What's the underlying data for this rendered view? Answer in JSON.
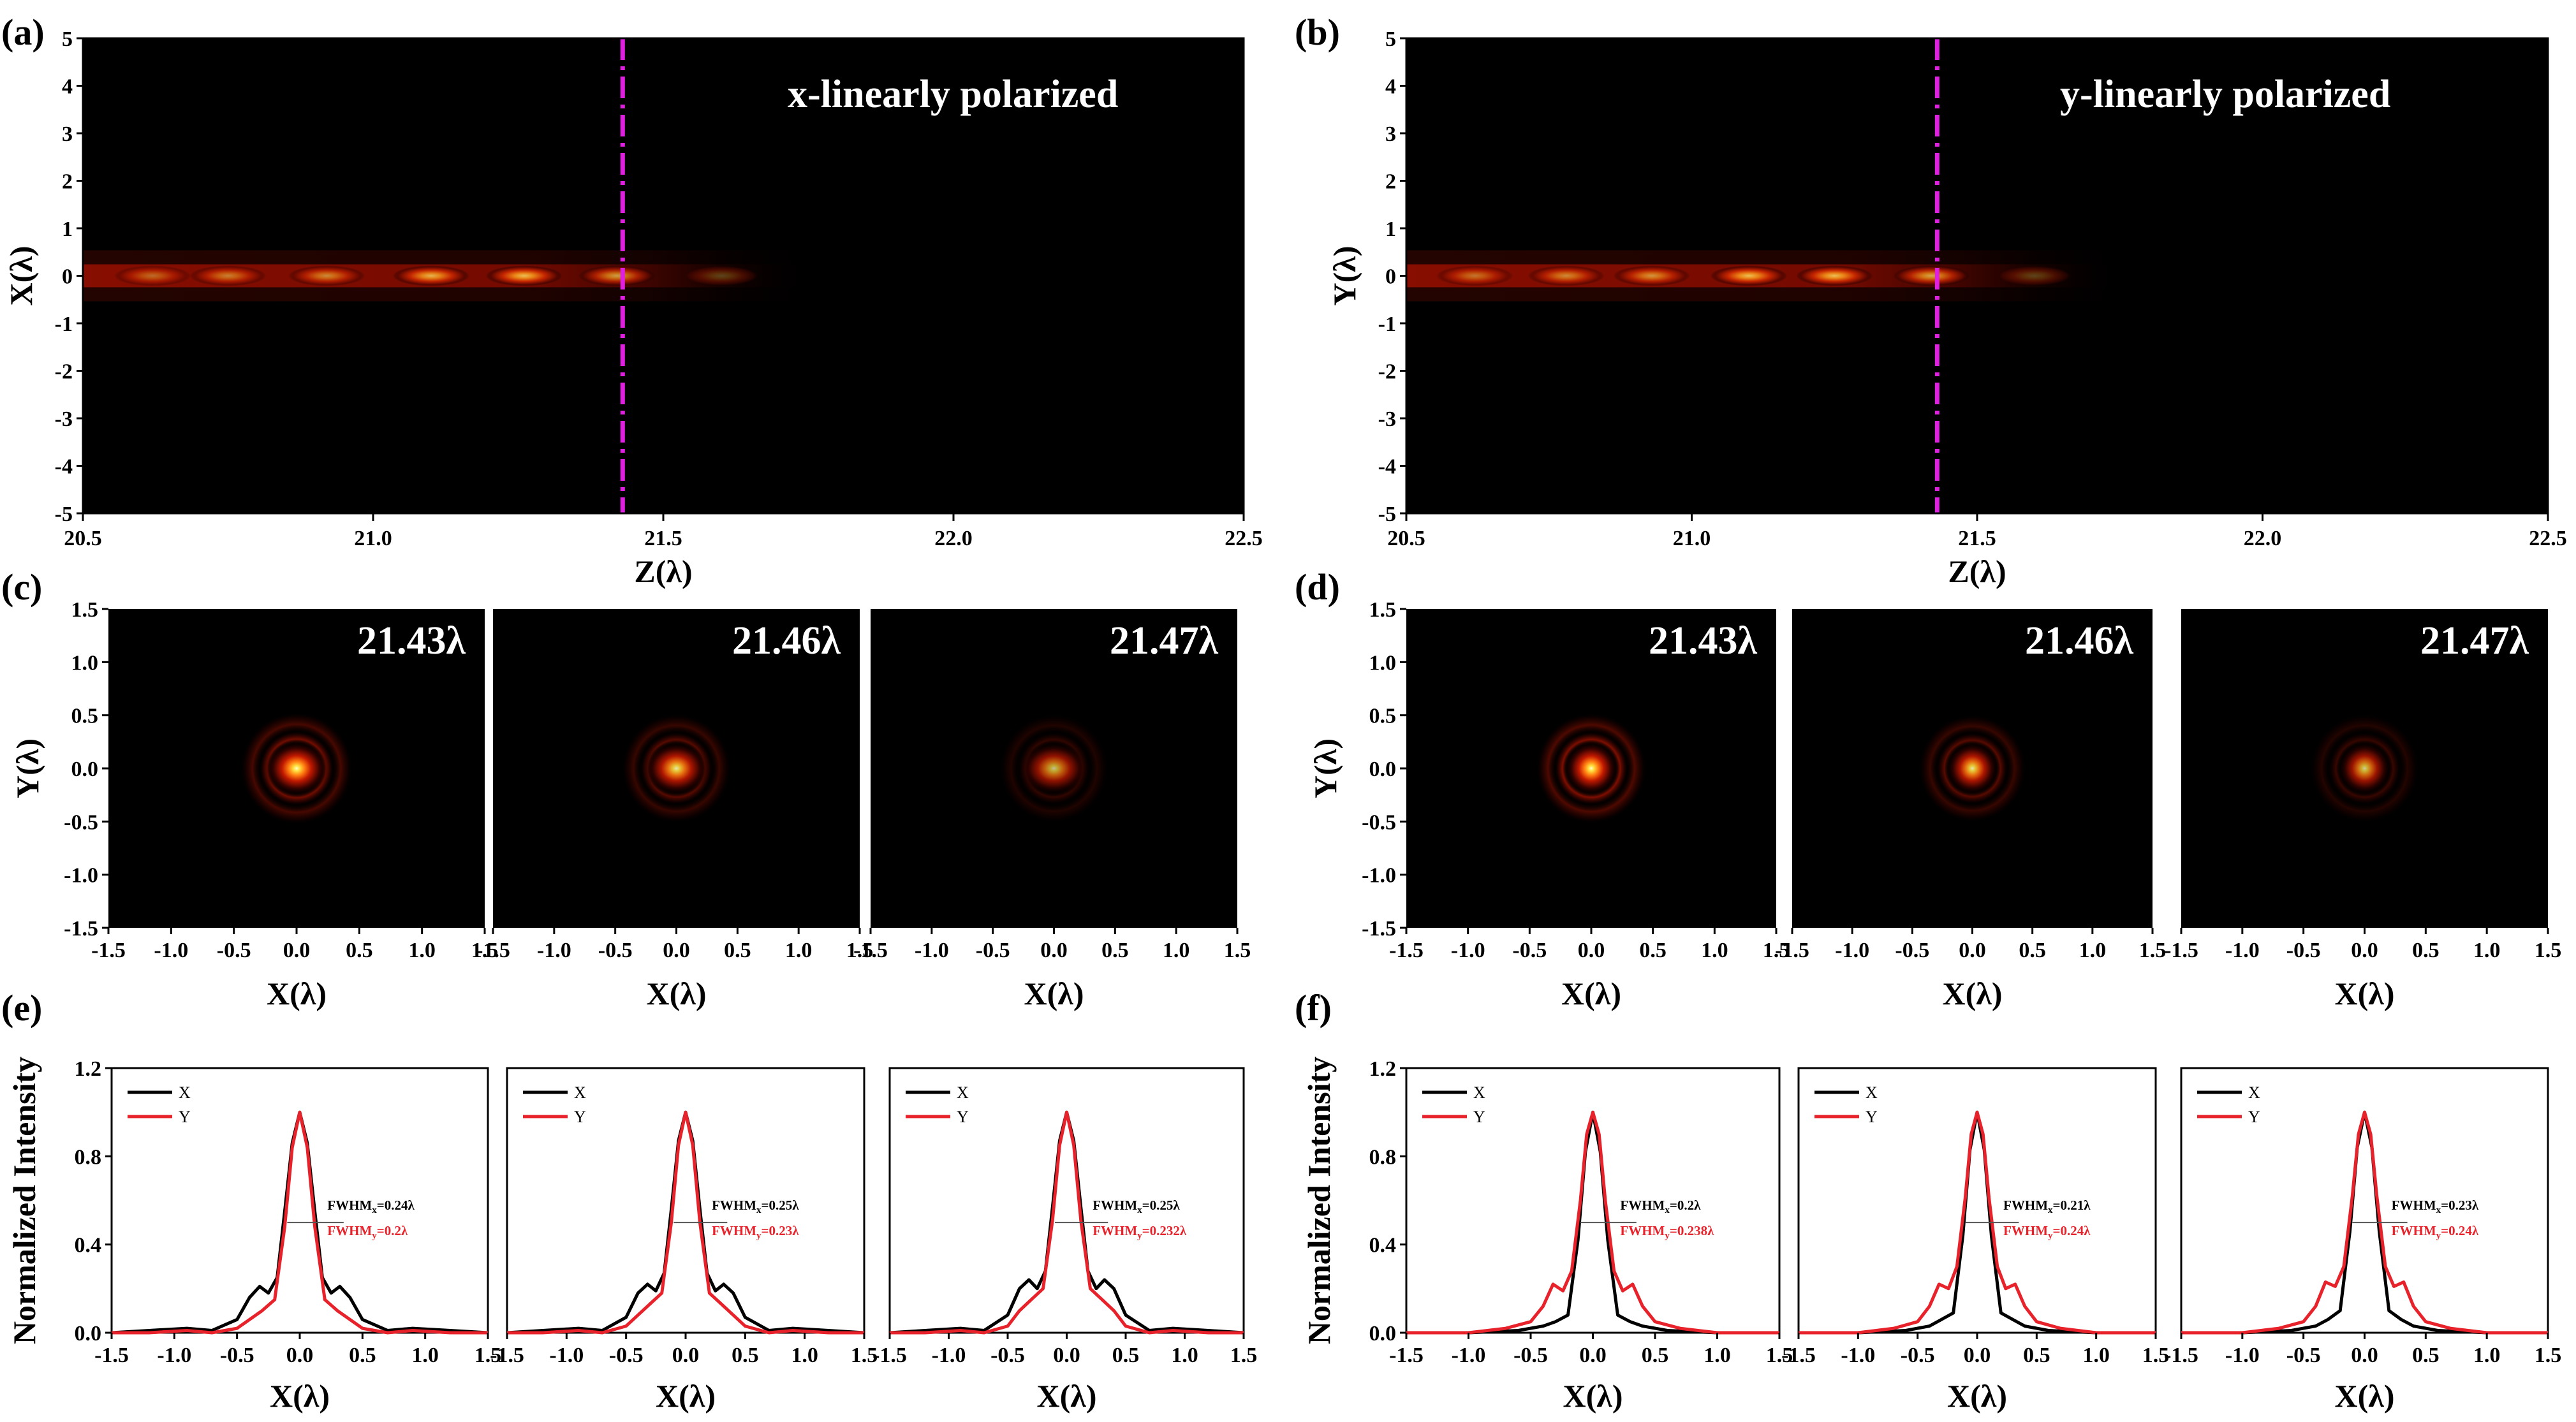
{
  "colors": {
    "x_curve": "#000000",
    "y_curve": "#e8222a",
    "marker": "#e020e0",
    "background": "#000000"
  },
  "chart_data": [
    {
      "id": "a",
      "type": "heatmap",
      "panel_label": "(a)",
      "annotation": "x-linearly polarized",
      "xlabel": "Z(λ)",
      "ylabel": "X(λ)",
      "xlim": [
        20.5,
        22.5
      ],
      "ylim": [
        -5,
        5
      ],
      "xticks": [
        "20.5",
        "21.0",
        "21.5",
        "22.0",
        "22.5"
      ],
      "yticks": [
        "5",
        "4",
        "3",
        "2",
        "1",
        "0",
        "-1",
        "-2",
        "-3",
        "-4",
        "-5"
      ],
      "marker_z": 21.43,
      "hotspots": [
        {
          "z": 20.62,
          "i": 0.45
        },
        {
          "z": 20.75,
          "i": 0.55
        },
        {
          "z": 20.92,
          "i": 0.6
        },
        {
          "z": 21.1,
          "i": 0.8
        },
        {
          "z": 21.26,
          "i": 0.85
        },
        {
          "z": 21.42,
          "i": 0.7
        },
        {
          "z": 21.6,
          "i": 0.3
        }
      ]
    },
    {
      "id": "b",
      "type": "heatmap",
      "panel_label": "(b)",
      "annotation": "y-linearly polarized",
      "xlabel": "Z(λ)",
      "ylabel": "Y(λ)",
      "xlim": [
        20.5,
        22.5
      ],
      "ylim": [
        -5,
        5
      ],
      "xticks": [
        "20.5",
        "21.0",
        "21.5",
        "22.0",
        "22.5"
      ],
      "yticks": [
        "5",
        "4",
        "3",
        "2",
        "1",
        "0",
        "-1",
        "-2",
        "-3",
        "-4",
        "-5"
      ],
      "marker_z": 21.43,
      "hotspots": [
        {
          "z": 20.62,
          "i": 0.5
        },
        {
          "z": 20.78,
          "i": 0.6
        },
        {
          "z": 20.93,
          "i": 0.65
        },
        {
          "z": 21.1,
          "i": 0.85
        },
        {
          "z": 21.25,
          "i": 0.85
        },
        {
          "z": 21.42,
          "i": 0.75
        },
        {
          "z": 21.6,
          "i": 0.3
        }
      ]
    },
    {
      "id": "c",
      "type": "heatmap",
      "panel_label": "(c)",
      "xlabel": "X(λ)",
      "ylabel": "Y(λ)",
      "xlim": [
        -1.5,
        1.5
      ],
      "ylim": [
        -1.5,
        1.5
      ],
      "xticks": [
        "-1.5",
        "-1.0",
        "-0.5",
        "0.0",
        "0.5",
        "1.0",
        "1.5"
      ],
      "yticks": [
        "1.5",
        "1.0",
        "0.5",
        "0.0",
        "-0.5",
        "-1.0",
        "-1.5"
      ],
      "subplots": [
        {
          "label": "21.43λ",
          "peak": 1.0,
          "ring": 0.45,
          "elong": 1.15
        },
        {
          "label": "21.46λ",
          "peak": 0.9,
          "ring": 0.35,
          "elong": 1.2
        },
        {
          "label": "21.47λ",
          "peak": 0.75,
          "ring": 0.2,
          "elong": 1.3
        }
      ]
    },
    {
      "id": "d",
      "type": "heatmap",
      "panel_label": "(d)",
      "xlabel": "X(λ)",
      "ylabel": "Y(λ)",
      "xlim": [
        -1.5,
        1.5
      ],
      "ylim": [
        -1.5,
        1.5
      ],
      "xticks": [
        "-1.5",
        "-1.0",
        "-0.5",
        "0.0",
        "0.5",
        "1.0",
        "1.5"
      ],
      "yticks": [
        "1.5",
        "1.0",
        "0.5",
        "0.0",
        "-0.5",
        "-1.0",
        "-1.5"
      ],
      "subplots": [
        {
          "label": "21.43λ",
          "peak": 1.0,
          "ring": 0.5,
          "elong": 1.0
        },
        {
          "label": "21.46λ",
          "peak": 0.9,
          "ring": 0.35,
          "elong": 1.0
        },
        {
          "label": "21.47λ",
          "peak": 0.8,
          "ring": 0.22,
          "elong": 1.0
        }
      ]
    },
    {
      "id": "e",
      "type": "line",
      "panel_label": "(e)",
      "xlabel": "X(λ)",
      "ylabel": "Normalized Intensity",
      "xlim": [
        -1.5,
        1.5
      ],
      "ylim": [
        0,
        1.2
      ],
      "xticks": [
        "-1.5",
        "-1.0",
        "-0.5",
        "0.0",
        "0.5",
        "1.0",
        "1.5"
      ],
      "yticks": [
        "1.2",
        "0.8",
        "0.4",
        "0.0"
      ],
      "legend": [
        "X",
        "Y"
      ],
      "subplots": [
        {
          "fwhm_x": "FWHMx=0.24λ",
          "fwhm_y": "FWHMy=0.2λ",
          "series": [
            {
              "name": "X",
              "x": [
                -1.5,
                -1.2,
                -0.9,
                -0.7,
                -0.5,
                -0.4,
                -0.32,
                -0.25,
                -0.18,
                -0.12,
                -0.06,
                0.0,
                0.06,
                0.12,
                0.18,
                0.25,
                0.32,
                0.4,
                0.5,
                0.7,
                0.9,
                1.2,
                1.5
              ],
              "values": [
                0.0,
                0.01,
                0.02,
                0.01,
                0.06,
                0.16,
                0.21,
                0.18,
                0.25,
                0.55,
                0.86,
                1.0,
                0.86,
                0.55,
                0.25,
                0.18,
                0.21,
                0.16,
                0.06,
                0.01,
                0.02,
                0.01,
                0.0
              ]
            },
            {
              "name": "Y",
              "x": [
                -1.5,
                -1.2,
                -0.9,
                -0.7,
                -0.5,
                -0.4,
                -0.3,
                -0.2,
                -0.12,
                -0.06,
                0.0,
                0.06,
                0.12,
                0.2,
                0.3,
                0.4,
                0.5,
                0.7,
                0.9,
                1.2,
                1.5
              ],
              "values": [
                0.0,
                0.0,
                0.01,
                0.0,
                0.02,
                0.06,
                0.1,
                0.15,
                0.48,
                0.84,
                1.0,
                0.84,
                0.48,
                0.15,
                0.1,
                0.06,
                0.02,
                0.0,
                0.01,
                0.0,
                0.0
              ]
            }
          ]
        },
        {
          "fwhm_x": "FWHMx=0.25λ",
          "fwhm_y": "FWHMy=0.23λ",
          "series": [
            {
              "name": "X",
              "x": [
                -1.5,
                -1.2,
                -0.9,
                -0.7,
                -0.5,
                -0.4,
                -0.32,
                -0.25,
                -0.18,
                -0.12,
                -0.06,
                0.0,
                0.06,
                0.12,
                0.18,
                0.25,
                0.32,
                0.4,
                0.5,
                0.7,
                0.9,
                1.2,
                1.5
              ],
              "values": [
                0.0,
                0.01,
                0.02,
                0.01,
                0.07,
                0.18,
                0.22,
                0.19,
                0.27,
                0.56,
                0.87,
                1.0,
                0.87,
                0.56,
                0.27,
                0.19,
                0.22,
                0.18,
                0.07,
                0.01,
                0.02,
                0.01,
                0.0
              ]
            },
            {
              "name": "Y",
              "x": [
                -1.5,
                -1.2,
                -0.9,
                -0.7,
                -0.5,
                -0.4,
                -0.3,
                -0.2,
                -0.12,
                -0.06,
                0.0,
                0.06,
                0.12,
                0.2,
                0.3,
                0.4,
                0.5,
                0.7,
                0.9,
                1.2,
                1.5
              ],
              "values": [
                0.0,
                0.0,
                0.01,
                0.0,
                0.03,
                0.08,
                0.13,
                0.18,
                0.5,
                0.85,
                1.0,
                0.85,
                0.5,
                0.18,
                0.13,
                0.08,
                0.03,
                0.0,
                0.01,
                0.0,
                0.0
              ]
            }
          ]
        },
        {
          "fwhm_x": "FWHMx=0.25λ",
          "fwhm_y": "FWHMy=0.232λ",
          "series": [
            {
              "name": "X",
              "x": [
                -1.5,
                -1.2,
                -0.9,
                -0.7,
                -0.5,
                -0.4,
                -0.32,
                -0.25,
                -0.18,
                -0.12,
                -0.06,
                0.0,
                0.06,
                0.12,
                0.18,
                0.25,
                0.32,
                0.4,
                0.5,
                0.7,
                0.9,
                1.2,
                1.5
              ],
              "values": [
                0.0,
                0.01,
                0.02,
                0.01,
                0.08,
                0.2,
                0.24,
                0.2,
                0.28,
                0.57,
                0.87,
                1.0,
                0.87,
                0.57,
                0.28,
                0.2,
                0.24,
                0.2,
                0.08,
                0.01,
                0.02,
                0.01,
                0.0
              ]
            },
            {
              "name": "Y",
              "x": [
                -1.5,
                -1.2,
                -0.9,
                -0.7,
                -0.5,
                -0.4,
                -0.3,
                -0.2,
                -0.12,
                -0.06,
                0.0,
                0.06,
                0.12,
                0.2,
                0.3,
                0.4,
                0.5,
                0.7,
                0.9,
                1.2,
                1.5
              ],
              "values": [
                0.0,
                0.0,
                0.01,
                0.0,
                0.03,
                0.1,
                0.15,
                0.2,
                0.51,
                0.85,
                1.0,
                0.85,
                0.51,
                0.2,
                0.15,
                0.1,
                0.03,
                0.0,
                0.01,
                0.0,
                0.0
              ]
            }
          ]
        }
      ]
    },
    {
      "id": "f",
      "type": "line",
      "panel_label": "(f)",
      "xlabel": "X(λ)",
      "ylabel": "Normalized Intensity",
      "xlim": [
        -1.5,
        1.5
      ],
      "ylim": [
        0,
        1.2
      ],
      "xticks": [
        "-1.5",
        "-1.0",
        "-0.5",
        "0.0",
        "0.5",
        "1.0",
        "1.5"
      ],
      "yticks": [
        "1.2",
        "0.8",
        "0.4",
        "0.0"
      ],
      "legend": [
        "X",
        "Y"
      ],
      "subplots": [
        {
          "fwhm_x": "FWHMx=0.2λ",
          "fwhm_y": "FWHMy=0.238λ",
          "series": [
            {
              "name": "X",
              "x": [
                -1.5,
                -1.0,
                -0.6,
                -0.4,
                -0.3,
                -0.2,
                -0.12,
                -0.06,
                0.0,
                0.06,
                0.12,
                0.2,
                0.3,
                0.4,
                0.6,
                1.0,
                1.5
              ],
              "values": [
                0.0,
                0.0,
                0.01,
                0.03,
                0.05,
                0.08,
                0.42,
                0.82,
                1.0,
                0.82,
                0.42,
                0.08,
                0.05,
                0.03,
                0.01,
                0.0,
                0.0
              ]
            },
            {
              "name": "Y",
              "x": [
                -1.5,
                -1.0,
                -0.7,
                -0.5,
                -0.4,
                -0.32,
                -0.24,
                -0.17,
                -0.1,
                -0.05,
                0.0,
                0.05,
                0.1,
                0.17,
                0.24,
                0.32,
                0.4,
                0.5,
                0.7,
                1.0,
                1.5
              ],
              "values": [
                0.0,
                0.0,
                0.02,
                0.05,
                0.12,
                0.22,
                0.19,
                0.28,
                0.6,
                0.9,
                1.0,
                0.9,
                0.6,
                0.28,
                0.19,
                0.22,
                0.12,
                0.05,
                0.02,
                0.0,
                0.0
              ]
            }
          ]
        },
        {
          "fwhm_x": "FWHMx=0.21λ",
          "fwhm_y": "FWHMy=0.24λ",
          "series": [
            {
              "name": "X",
              "x": [
                -1.5,
                -1.0,
                -0.6,
                -0.4,
                -0.3,
                -0.2,
                -0.12,
                -0.06,
                0.0,
                0.06,
                0.12,
                0.2,
                0.3,
                0.4,
                0.6,
                1.0,
                1.5
              ],
              "values": [
                0.0,
                0.0,
                0.01,
                0.03,
                0.06,
                0.09,
                0.44,
                0.83,
                1.0,
                0.83,
                0.44,
                0.09,
                0.06,
                0.03,
                0.01,
                0.0,
                0.0
              ]
            },
            {
              "name": "Y",
              "x": [
                -1.5,
                -1.0,
                -0.7,
                -0.5,
                -0.4,
                -0.32,
                -0.24,
                -0.17,
                -0.1,
                -0.05,
                0.0,
                0.05,
                0.1,
                0.17,
                0.24,
                0.32,
                0.4,
                0.5,
                0.7,
                1.0,
                1.5
              ],
              "values": [
                0.0,
                0.0,
                0.02,
                0.05,
                0.12,
                0.22,
                0.2,
                0.3,
                0.61,
                0.9,
                1.0,
                0.9,
                0.61,
                0.3,
                0.2,
                0.22,
                0.12,
                0.05,
                0.02,
                0.0,
                0.0
              ]
            }
          ]
        },
        {
          "fwhm_x": "FWHMx=0.23λ",
          "fwhm_y": "FWHMy=0.24λ",
          "series": [
            {
              "name": "X",
              "x": [
                -1.5,
                -1.0,
                -0.6,
                -0.4,
                -0.3,
                -0.2,
                -0.12,
                -0.06,
                0.0,
                0.06,
                0.12,
                0.2,
                0.3,
                0.4,
                0.6,
                1.0,
                1.5
              ],
              "values": [
                0.0,
                0.0,
                0.01,
                0.03,
                0.06,
                0.1,
                0.46,
                0.84,
                1.0,
                0.84,
                0.46,
                0.1,
                0.06,
                0.03,
                0.01,
                0.0,
                0.0
              ]
            },
            {
              "name": "Y",
              "x": [
                -1.5,
                -1.0,
                -0.7,
                -0.5,
                -0.4,
                -0.32,
                -0.24,
                -0.17,
                -0.1,
                -0.05,
                0.0,
                0.05,
                0.1,
                0.17,
                0.24,
                0.32,
                0.4,
                0.5,
                0.7,
                1.0,
                1.5
              ],
              "values": [
                0.0,
                0.0,
                0.02,
                0.05,
                0.12,
                0.23,
                0.21,
                0.3,
                0.62,
                0.9,
                1.0,
                0.9,
                0.62,
                0.3,
                0.21,
                0.23,
                0.12,
                0.05,
                0.02,
                0.0,
                0.0
              ]
            }
          ]
        }
      ]
    }
  ]
}
